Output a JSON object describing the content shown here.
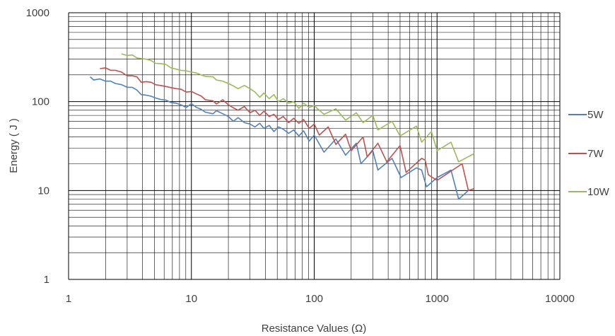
{
  "chart_data": {
    "type": "line",
    "title": "",
    "xlabel": "Resistance Values (Ω)",
    "ylabel": "Energy ( J )",
    "xscale": "log",
    "yscale": "log",
    "xlim": [
      1,
      10000
    ],
    "ylim": [
      1,
      1000
    ],
    "xticks": [
      1,
      10,
      100,
      1000,
      10000
    ],
    "yticks": [
      1,
      10,
      100,
      1000
    ],
    "xtick_labels": [
      "1",
      "10",
      "100",
      "1000",
      "10000"
    ],
    "ytick_labels": [
      "1",
      "10",
      "100",
      "1000"
    ],
    "grid": true,
    "legend": "right",
    "series": [
      {
        "name": "5W",
        "color": "#4f81bd",
        "points": [
          [
            1.5,
            190
          ],
          [
            1.6,
            175
          ],
          [
            1.8,
            180
          ],
          [
            2.0,
            170
          ],
          [
            2.2,
            170
          ],
          [
            2.4,
            160
          ],
          [
            2.7,
            155
          ],
          [
            3.0,
            145
          ],
          [
            3.3,
            145
          ],
          [
            3.6,
            135
          ],
          [
            3.9,
            120
          ],
          [
            4.3,
            118
          ],
          [
            4.7,
            115
          ],
          [
            5.1,
            110
          ],
          [
            5.6,
            106
          ],
          [
            6.2,
            104
          ],
          [
            6.8,
            98
          ],
          [
            7.5,
            96
          ],
          [
            8.2,
            92
          ],
          [
            9.1,
            86
          ],
          [
            10,
            95
          ],
          [
            11,
            86
          ],
          [
            12,
            82
          ],
          [
            13,
            76
          ],
          [
            15,
            73
          ],
          [
            16,
            79
          ],
          [
            18,
            73
          ],
          [
            20,
            68
          ],
          [
            22,
            60
          ],
          [
            24,
            66
          ],
          [
            27,
            58
          ],
          [
            30,
            56
          ],
          [
            33,
            52
          ],
          [
            36,
            57
          ],
          [
            39,
            50
          ],
          [
            43,
            54
          ],
          [
            47,
            46
          ],
          [
            51,
            52
          ],
          [
            56,
            49
          ],
          [
            62,
            44
          ],
          [
            68,
            48
          ],
          [
            75,
            41
          ],
          [
            82,
            47
          ],
          [
            91,
            36
          ],
          [
            100,
            42
          ],
          [
            120,
            27
          ],
          [
            150,
            38
          ],
          [
            180,
            25
          ],
          [
            220,
            34
          ],
          [
            240,
            20
          ],
          [
            300,
            28
          ],
          [
            330,
            17
          ],
          [
            430,
            23
          ],
          [
            510,
            14
          ],
          [
            680,
            18
          ],
          [
            750,
            17
          ],
          [
            820,
            11
          ],
          [
            1000,
            14
          ],
          [
            1300,
            17
          ],
          [
            1500,
            8
          ],
          [
            1800,
            10
          ]
        ]
      },
      {
        "name": "7W",
        "color": "#c0504d",
        "points": [
          [
            1.8,
            235
          ],
          [
            2.0,
            240
          ],
          [
            2.2,
            225
          ],
          [
            2.4,
            225
          ],
          [
            2.7,
            215
          ],
          [
            3.0,
            195
          ],
          [
            3.3,
            195
          ],
          [
            3.6,
            190
          ],
          [
            3.9,
            165
          ],
          [
            4.3,
            168
          ],
          [
            4.7,
            165
          ],
          [
            5.1,
            155
          ],
          [
            5.6,
            152
          ],
          [
            6.2,
            148
          ],
          [
            6.8,
            144
          ],
          [
            7.5,
            140
          ],
          [
            8.2,
            138
          ],
          [
            9.1,
            128
          ],
          [
            10,
            130
          ],
          [
            11,
            122
          ],
          [
            12,
            116
          ],
          [
            13,
            105
          ],
          [
            15,
            102
          ],
          [
            16,
            94
          ],
          [
            18,
            105
          ],
          [
            20,
            92
          ],
          [
            22,
            85
          ],
          [
            24,
            80
          ],
          [
            27,
            88
          ],
          [
            30,
            75
          ],
          [
            33,
            80
          ],
          [
            36,
            70
          ],
          [
            39,
            78
          ],
          [
            43,
            68
          ],
          [
            47,
            72
          ],
          [
            51,
            63
          ],
          [
            56,
            68
          ],
          [
            62,
            58
          ],
          [
            68,
            65
          ],
          [
            75,
            57
          ],
          [
            82,
            63
          ],
          [
            91,
            50
          ],
          [
            100,
            56
          ],
          [
            110,
            42
          ],
          [
            130,
            52
          ],
          [
            150,
            33
          ],
          [
            180,
            43
          ],
          [
            200,
            28
          ],
          [
            250,
            40
          ],
          [
            270,
            24
          ],
          [
            330,
            34
          ],
          [
            390,
            21
          ],
          [
            500,
            32
          ],
          [
            560,
            16
          ],
          [
            750,
            23
          ],
          [
            800,
            22
          ],
          [
            850,
            15
          ],
          [
            1000,
            13
          ],
          [
            1600,
            20
          ],
          [
            1800,
            10
          ],
          [
            2000,
            10.5
          ]
        ]
      },
      {
        "name": "10W",
        "color": "#9bbb59",
        "points": [
          [
            2.7,
            345
          ],
          [
            3.0,
            330
          ],
          [
            3.3,
            335
          ],
          [
            3.6,
            310
          ],
          [
            3.9,
            305
          ],
          [
            4.3,
            300
          ],
          [
            4.7,
            290
          ],
          [
            5.1,
            270
          ],
          [
            5.6,
            268
          ],
          [
            6.2,
            262
          ],
          [
            6.8,
            240
          ],
          [
            7.5,
            232
          ],
          [
            8.2,
            225
          ],
          [
            9.1,
            222
          ],
          [
            10,
            215
          ],
          [
            11,
            210
          ],
          [
            12,
            200
          ],
          [
            13,
            192
          ],
          [
            15,
            190
          ],
          [
            16,
            175
          ],
          [
            18,
            170
          ],
          [
            20,
            160
          ],
          [
            22,
            150
          ],
          [
            24,
            140
          ],
          [
            27,
            152
          ],
          [
            30,
            140
          ],
          [
            33,
            128
          ],
          [
            36,
            112
          ],
          [
            39,
            125
          ],
          [
            43,
            108
          ],
          [
            47,
            120
          ],
          [
            51,
            100
          ],
          [
            56,
            108
          ],
          [
            62,
            96
          ],
          [
            68,
            100
          ],
          [
            75,
            84
          ],
          [
            82,
            96
          ],
          [
            91,
            86
          ],
          [
            100,
            90
          ],
          [
            110,
            80
          ],
          [
            120,
            72
          ],
          [
            150,
            83
          ],
          [
            180,
            62
          ],
          [
            220,
            75
          ],
          [
            250,
            58
          ],
          [
            300,
            70
          ],
          [
            330,
            48
          ],
          [
            430,
            60
          ],
          [
            500,
            41
          ],
          [
            680,
            53
          ],
          [
            750,
            35
          ],
          [
            900,
            46
          ],
          [
            1000,
            28
          ],
          [
            1300,
            35
          ],
          [
            1500,
            21
          ],
          [
            2000,
            26
          ]
        ]
      }
    ]
  }
}
